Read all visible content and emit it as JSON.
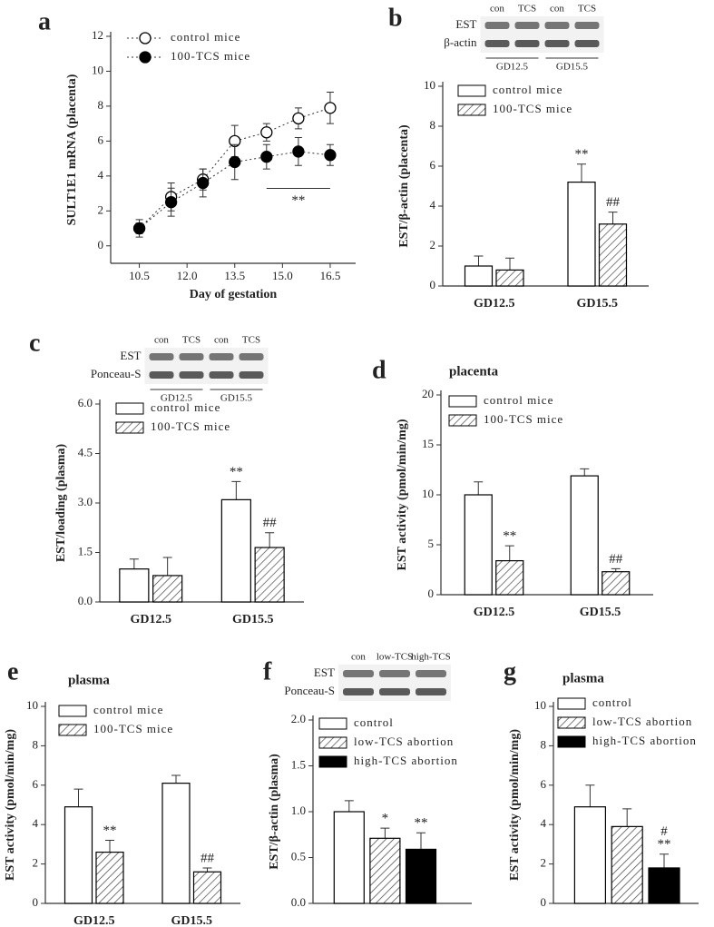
{
  "chart_data": [
    {
      "type": "line",
      "panel": "a",
      "y_label": "SULT1E1 mRNA (placenta)",
      "x_label": "Day of gestation",
      "x": [
        10.5,
        11.5,
        12.5,
        13.5,
        14.5,
        15.5,
        16.5
      ],
      "xlim": [
        9.6,
        17.3
      ],
      "xticks": [
        10.5,
        {
          "value": 12.0,
          "label": "12.0"
        },
        13.5,
        {
          "value": 15.0,
          "label": "15.0"
        },
        16.5
      ],
      "ylim": [
        -1,
        12
      ],
      "yticks": [
        0,
        2,
        4,
        6,
        8,
        10,
        12
      ],
      "series": [
        {
          "name": "control mice",
          "color": "#ffffff",
          "values": [
            1.0,
            2.8,
            3.8,
            6.0,
            6.5,
            7.3,
            7.9
          ],
          "errors": [
            0.3,
            0.8,
            0.6,
            0.9,
            0.5,
            0.6,
            0.9
          ]
        },
        {
          "name": "100-TCS mice",
          "color": "#000000",
          "values": [
            1.0,
            2.5,
            3.6,
            4.8,
            5.1,
            5.4,
            5.2
          ],
          "errors": [
            0.5,
            0.8,
            0.8,
            1.0,
            0.7,
            0.8,
            0.6
          ]
        }
      ],
      "annotation": "**"
    },
    {
      "type": "bar",
      "panel": "b",
      "y_label": "EST/β-actin (placenta)",
      "blot": {
        "rows": [
          "EST",
          "β-actin"
        ],
        "lanes": [
          "con",
          "TCS",
          "con",
          "TCS"
        ],
        "groups": [
          "GD12.5",
          "GD15.5"
        ]
      },
      "categories": [
        "GD12.5",
        "GD15.5"
      ],
      "ylim": [
        0,
        10
      ],
      "yticks": [
        0,
        2,
        4,
        6,
        8,
        10
      ],
      "series": [
        {
          "name": "control mice",
          "color": "#ffffff",
          "hatch": false,
          "values": [
            1.0,
            5.2
          ],
          "errors": [
            0.5,
            0.9
          ],
          "marks": [
            null,
            "**"
          ]
        },
        {
          "name": "100-TCS mice",
          "color": "#ffffff",
          "hatch": true,
          "values": [
            0.8,
            3.1
          ],
          "errors": [
            0.6,
            0.6
          ],
          "marks": [
            null,
            "##"
          ]
        }
      ]
    },
    {
      "type": "bar",
      "panel": "c",
      "y_label": "EST/loading (plasma)",
      "blot": {
        "rows": [
          "EST",
          "Ponceau-S"
        ],
        "lanes": [
          "con",
          "TCS",
          "con",
          "TCS"
        ],
        "groups": [
          "GD12.5",
          "GD15.5"
        ]
      },
      "categories": [
        "GD12.5",
        "GD15.5"
      ],
      "ylim": [
        0,
        6
      ],
      "yticks": [
        {
          "value": 0,
          "label": "0.0"
        },
        1.5,
        {
          "value": 3,
          "label": "3.0"
        },
        4.5,
        {
          "value": 6,
          "label": "6.0"
        }
      ],
      "series": [
        {
          "name": "control mice",
          "color": "#ffffff",
          "hatch": false,
          "values": [
            1.0,
            3.1
          ],
          "errors": [
            0.3,
            0.55
          ],
          "marks": [
            null,
            "**"
          ]
        },
        {
          "name": "100-TCS mice",
          "color": "#ffffff",
          "hatch": true,
          "values": [
            0.8,
            1.65
          ],
          "errors": [
            0.55,
            0.45
          ],
          "marks": [
            null,
            "##"
          ]
        }
      ]
    },
    {
      "type": "bar",
      "panel": "d",
      "subtitle": "placenta",
      "y_label": "EST activity (pmol/min/mg)",
      "categories": [
        "GD12.5",
        "GD15.5"
      ],
      "ylim": [
        0,
        20
      ],
      "yticks": [
        0,
        5,
        10,
        15,
        20
      ],
      "series": [
        {
          "name": "control mice",
          "color": "#ffffff",
          "hatch": false,
          "values": [
            10.0,
            11.9
          ],
          "errors": [
            1.3,
            0.7
          ],
          "marks": [
            null,
            null
          ]
        },
        {
          "name": "100-TCS mice",
          "color": "#ffffff",
          "hatch": true,
          "values": [
            3.4,
            2.3
          ],
          "errors": [
            1.5,
            0.3
          ],
          "marks": [
            "**",
            "##"
          ]
        }
      ]
    },
    {
      "type": "bar",
      "panel": "e",
      "subtitle": "plasma",
      "y_label": "EST activity (pmol/min/mg)",
      "categories": [
        "GD12.5",
        "GD15.5"
      ],
      "ylim": [
        0,
        10
      ],
      "yticks": [
        0,
        2,
        4,
        6,
        8,
        10
      ],
      "series": [
        {
          "name": "control mice",
          "color": "#ffffff",
          "hatch": false,
          "values": [
            4.9,
            6.1
          ],
          "errors": [
            0.9,
            0.4
          ],
          "marks": [
            null,
            null
          ]
        },
        {
          "name": "100-TCS mice",
          "color": "#ffffff",
          "hatch": true,
          "values": [
            2.6,
            1.6
          ],
          "errors": [
            0.6,
            0.2
          ],
          "marks": [
            "**",
            "##"
          ]
        }
      ]
    },
    {
      "type": "bar",
      "panel": "f",
      "y_label": "EST/β-actin (plasma)",
      "blot": {
        "rows": [
          "EST",
          "Ponceau-S"
        ],
        "lanes": [
          "con",
          "low-TCS",
          "high-TCS"
        ]
      },
      "categories": [
        null
      ],
      "ylim": [
        0,
        2
      ],
      "yticks": [
        {
          "value": 0,
          "label": "0.0"
        },
        0.5,
        {
          "value": 1,
          "label": "1.0"
        },
        1.5,
        {
          "value": 2,
          "label": "2.0"
        }
      ],
      "series": [
        {
          "name": "control",
          "color": "#ffffff",
          "hatch": false,
          "values": [
            1.0
          ],
          "errors": [
            0.12
          ],
          "marks": [
            null
          ]
        },
        {
          "name": "low-TCS abortion",
          "color": "#ffffff",
          "hatch": true,
          "values": [
            0.71
          ],
          "errors": [
            0.11
          ],
          "marks": [
            "*"
          ]
        },
        {
          "name": "high-TCS abortion",
          "color": "#000000",
          "hatch": false,
          "values": [
            0.59
          ],
          "errors": [
            0.18
          ],
          "marks": [
            "**"
          ]
        }
      ]
    },
    {
      "type": "bar",
      "panel": "g",
      "subtitle": "plasma",
      "y_label": "EST activity (pmol/min/mg)",
      "categories": [
        null
      ],
      "ylim": [
        0,
        10
      ],
      "yticks": [
        0,
        2,
        4,
        6,
        8,
        10
      ],
      "series": [
        {
          "name": "control",
          "color": "#ffffff",
          "hatch": false,
          "values": [
            4.9
          ],
          "errors": [
            1.1
          ],
          "marks": [
            null
          ]
        },
        {
          "name": "low-TCS abortion",
          "color": "#ffffff",
          "hatch": true,
          "values": [
            3.9
          ],
          "errors": [
            0.9
          ],
          "marks": [
            null
          ]
        },
        {
          "name": "high-TCS abortion",
          "color": "#000000",
          "hatch": false,
          "values": [
            1.8
          ],
          "errors": [
            0.7
          ],
          "marks": [
            "#\n**"
          ]
        }
      ]
    }
  ]
}
